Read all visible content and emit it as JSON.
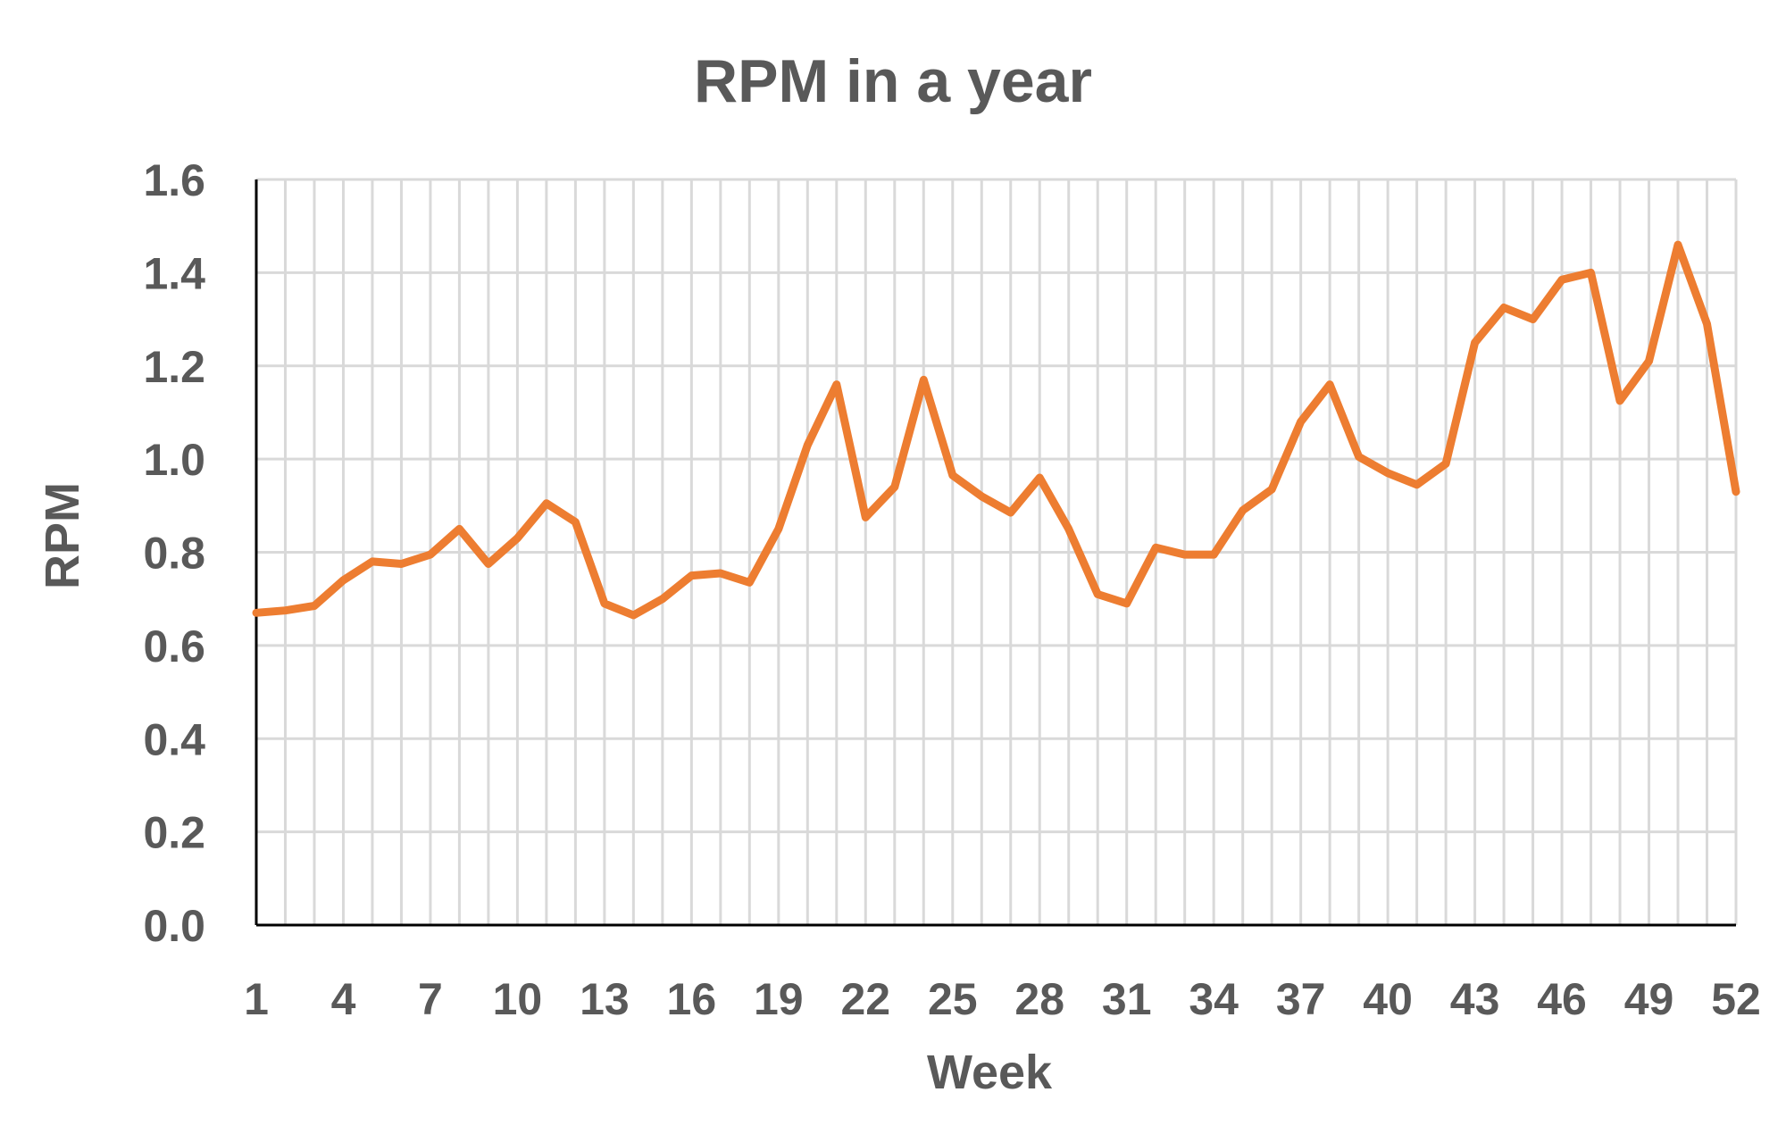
{
  "chart_data": {
    "type": "line",
    "title": "RPM in a year",
    "xlabel": "Week",
    "ylabel": "RPM",
    "ylim": [
      0,
      1.6
    ],
    "y_ticks": [
      "0.0",
      "0.2",
      "0.4",
      "0.6",
      "0.8",
      "1.0",
      "1.2",
      "1.4",
      "1.6"
    ],
    "x_tick_labels": [
      "1",
      "4",
      "7",
      "10",
      "13",
      "16",
      "19",
      "22",
      "25",
      "28",
      "31",
      "34",
      "37",
      "40",
      "43",
      "46",
      "49",
      "52"
    ],
    "grid": true,
    "legend": "none",
    "series": [
      {
        "color": "#ED7D31",
        "x": [
          1,
          2,
          3,
          4,
          5,
          6,
          7,
          8,
          9,
          10,
          11,
          12,
          13,
          14,
          15,
          16,
          17,
          18,
          19,
          20,
          21,
          22,
          23,
          24,
          25,
          26,
          27,
          28,
          29,
          30,
          31,
          32,
          33,
          34,
          35,
          36,
          37,
          38,
          39,
          40,
          41,
          42,
          43,
          44,
          45,
          46,
          47,
          48,
          49,
          50,
          51,
          52
        ],
        "values": [
          0.67,
          0.675,
          0.685,
          0.74,
          0.78,
          0.775,
          0.795,
          0.85,
          0.775,
          0.83,
          0.905,
          0.865,
          0.69,
          0.665,
          0.7,
          0.75,
          0.755,
          0.735,
          0.85,
          1.03,
          1.16,
          0.875,
          0.94,
          1.17,
          0.965,
          0.92,
          0.885,
          0.96,
          0.85,
          0.71,
          0.69,
          0.81,
          0.795,
          0.795,
          0.89,
          0.935,
          1.08,
          1.16,
          1.005,
          0.97,
          0.945,
          0.99,
          1.25,
          1.325,
          1.3,
          1.385,
          1.4,
          1.125,
          1.21,
          1.46,
          1.29,
          0.93
        ]
      }
    ]
  }
}
